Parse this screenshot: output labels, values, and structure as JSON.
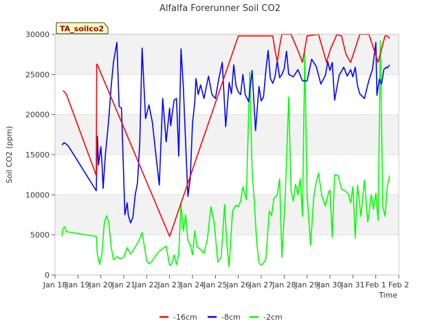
{
  "chart_data": {
    "type": "line",
    "title": "Alfalfa Forerunner Soil CO2",
    "xlabel": "Time",
    "ylabel": "Soil CO2 (ppm)",
    "site_label": "TA_soilco2",
    "xlim": [
      0,
      15
    ],
    "ylim": [
      0,
      30000
    ],
    "yticks": [
      0,
      5000,
      10000,
      15000,
      20000,
      25000,
      30000
    ],
    "xtick_labels": [
      "Jan 18",
      "Jan 19",
      "Jan 20",
      "Jan 21",
      "Jan 22",
      "Jan 23",
      "Jan 24",
      "Jan 25",
      "Jan 26",
      "Jan 27",
      "Jan 28",
      "Jan 29",
      "Jan 30",
      "Jan 31",
      "Feb 1",
      "Feb 2"
    ],
    "grid": true,
    "legend_position": "bottom",
    "series": [
      {
        "name": "-16cm",
        "color": "#ff0000",
        "x": [
          0.35,
          0.45,
          0.5,
          1.8,
          1.82,
          1.85,
          5.0,
          8.0,
          9.5,
          9.6,
          9.7,
          9.8,
          9.9,
          10.0,
          10.3,
          10.6,
          10.8,
          11.0,
          11.5,
          11.7,
          11.85,
          12.0,
          12.3,
          12.5,
          12.7,
          12.9,
          13.3,
          13.7,
          14.1,
          14.4,
          14.5,
          14.6
        ],
        "y": [
          23000,
          22700,
          22500,
          12400,
          26300,
          26200,
          4800,
          29800,
          29800,
          28000,
          26600,
          28500,
          30000,
          30000,
          30000,
          28000,
          26500,
          29800,
          30000,
          28000,
          26500,
          28000,
          30000,
          29800,
          27500,
          26500,
          30000,
          30000,
          26500,
          29800,
          29800,
          29500
        ]
      },
      {
        "name": "-8cm",
        "color": "#0000ff",
        "x": [
          0.3,
          0.4,
          0.5,
          0.6,
          1.8,
          1.85,
          1.9,
          2.0,
          2.05,
          2.1,
          2.2,
          2.35,
          2.45,
          2.55,
          2.7,
          2.8,
          2.9,
          3.05,
          3.15,
          3.2,
          3.3,
          3.4,
          3.5,
          3.6,
          3.7,
          3.8,
          3.95,
          4.1,
          4.25,
          4.4,
          4.55,
          4.7,
          4.85,
          5.0,
          5.05,
          5.1,
          5.2,
          5.3,
          5.4,
          5.5,
          5.6,
          5.7,
          5.8,
          5.9,
          6.0,
          6.1,
          6.15,
          6.25,
          6.35,
          6.5,
          6.7,
          6.85,
          7.0,
          7.15,
          7.3,
          7.45,
          7.6,
          7.7,
          7.8,
          7.9,
          8.0,
          8.1,
          8.2,
          8.3,
          8.45,
          8.6,
          8.75,
          8.9,
          9.0,
          9.1,
          9.2,
          9.3,
          9.4,
          9.5,
          9.6,
          9.7,
          9.8,
          9.9,
          10.0,
          10.1,
          10.2,
          10.4,
          10.6,
          10.8,
          11.0,
          11.2,
          11.4,
          11.6,
          11.8,
          11.9,
          12.0,
          12.1,
          12.2,
          12.4,
          12.6,
          12.75,
          12.9,
          13.0,
          13.1,
          13.2,
          13.3,
          13.5,
          13.7,
          13.85,
          14.0,
          14.05,
          14.15,
          14.25,
          14.35,
          14.45,
          14.5,
          14.6
        ],
        "y": [
          16200,
          16500,
          16300,
          16000,
          10500,
          17300,
          13700,
          16000,
          14000,
          10800,
          15000,
          19500,
          23500,
          26500,
          29000,
          21000,
          20800,
          7500,
          9000,
          7400,
          6500,
          7200,
          10000,
          11500,
          16500,
          28300,
          19500,
          21200,
          19000,
          15000,
          11200,
          22000,
          16600,
          20800,
          18600,
          19800,
          21800,
          22000,
          14800,
          28200,
          23400,
          16500,
          9800,
          12000,
          18900,
          21500,
          24500,
          22500,
          23700,
          22000,
          24800,
          22500,
          22000,
          24500,
          26500,
          18500,
          24000,
          22600,
          26200,
          23600,
          22800,
          22500,
          25000,
          22500,
          21600,
          25500,
          18000,
          23500,
          21700,
          22200,
          25500,
          28000,
          24500,
          23900,
          24700,
          26700,
          24600,
          25000,
          25700,
          27900,
          25000,
          24700,
          25600,
          24200,
          24200,
          26900,
          26000,
          23800,
          24900,
          26600,
          25500,
          26500,
          21800,
          24900,
          25900,
          24800,
          25600,
          24700,
          25900,
          23600,
          22600,
          22000,
          24300,
          25600,
          29000,
          22400,
          24400,
          23800,
          25600,
          25900,
          25800,
          26200
        ]
      },
      {
        "name": "-2cm",
        "color": "#00ff00",
        "x": [
          0.3,
          0.35,
          0.42,
          0.5,
          1.8,
          1.85,
          1.95,
          2.05,
          2.15,
          2.25,
          2.35,
          2.45,
          2.55,
          2.7,
          2.85,
          3.0,
          3.15,
          3.3,
          3.5,
          3.65,
          3.8,
          4.0,
          4.1,
          4.2,
          4.35,
          4.5,
          4.7,
          4.85,
          5.0,
          5.1,
          5.2,
          5.3,
          5.4,
          5.5,
          5.6,
          5.7,
          5.8,
          5.9,
          6.0,
          6.1,
          6.2,
          6.35,
          6.5,
          6.65,
          6.8,
          6.95,
          7.1,
          7.25,
          7.4,
          7.5,
          7.6,
          7.75,
          7.9,
          8.0,
          8.1,
          8.2,
          8.35,
          8.5,
          8.6,
          8.7,
          8.8,
          8.9,
          9.0,
          9.1,
          9.2,
          9.35,
          9.45,
          9.55,
          9.7,
          9.8,
          9.9,
          10.05,
          10.2,
          10.3,
          10.4,
          10.5,
          10.6,
          10.7,
          10.8,
          10.9,
          11.0,
          11.15,
          11.3,
          11.4,
          11.5,
          11.65,
          11.8,
          11.95,
          12.0,
          12.1,
          12.2,
          12.35,
          12.5,
          12.65,
          12.8,
          12.9,
          13.0,
          13.1,
          13.2,
          13.35,
          13.5,
          13.65,
          13.8,
          13.9,
          14.0,
          14.1,
          14.2,
          14.3,
          14.4,
          14.5,
          14.6
        ],
        "y": [
          4800,
          5800,
          6000,
          5400,
          4800,
          2500,
          1300,
          2700,
          6500,
          7400,
          6500,
          3500,
          1900,
          2300,
          2000,
          2200,
          3400,
          2600,
          3500,
          4200,
          5300,
          1800,
          1400,
          1600,
          2200,
          2800,
          3300,
          3600,
          1200,
          1400,
          2500,
          1300,
          2600,
          8800,
          5500,
          7500,
          4300,
          3800,
          2500,
          5500,
          3500,
          3200,
          2700,
          4500,
          8500,
          6500,
          1600,
          2200,
          8800,
          3800,
          1000,
          8000,
          8700,
          8500,
          9200,
          11000,
          9400,
          25300,
          13000,
          9000,
          4200,
          1500,
          1200,
          1500,
          2000,
          8000,
          7400,
          9500,
          10000,
          12000,
          2200,
          10000,
          22200,
          10500,
          9200,
          11300,
          10000,
          12000,
          7300,
          27700,
          10000,
          3700,
          10000,
          11500,
          12700,
          9800,
          8600,
          10400,
          10600,
          4700,
          12500,
          12400,
          10700,
          10500,
          10100,
          9000,
          11000,
          4600,
          11200,
          7300,
          11800,
          6600,
          10000,
          8200,
          10200,
          6800,
          29200,
          8600,
          7300,
          11000,
          12400
        ]
      }
    ]
  }
}
